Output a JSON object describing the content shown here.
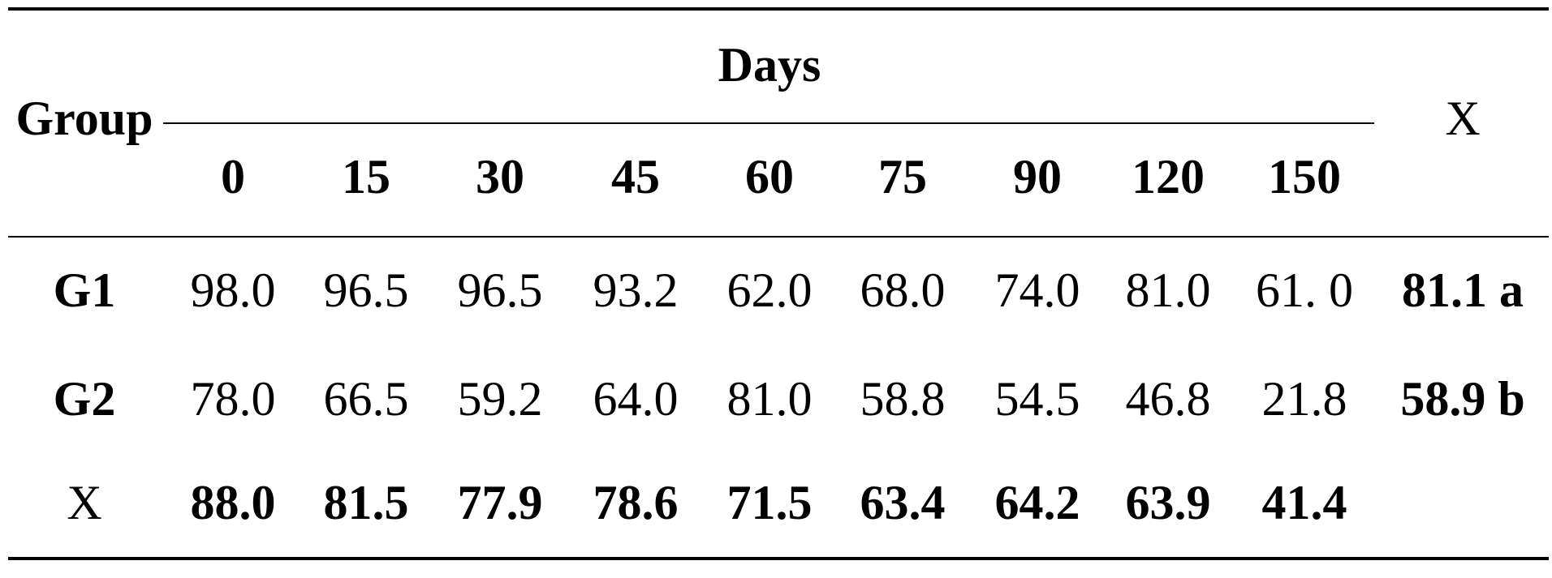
{
  "table": {
    "header": {
      "group": "Group",
      "days": "Days",
      "day_columns": [
        "0",
        "15",
        "30",
        "45",
        "60",
        "75",
        "90",
        "120",
        "150"
      ],
      "mean": "X"
    },
    "rows": [
      {
        "label": "G1",
        "values": [
          "98.0",
          "96.5",
          "96.5",
          "93.2",
          "62.0",
          "68.0",
          "74.0",
          "81.0",
          "61. 0"
        ],
        "mean": "81.1 a"
      },
      {
        "label": "G2",
        "values": [
          "78.0",
          "66.5",
          "59.2",
          "64.0",
          "81.0",
          "58.8",
          "54.5",
          "46.8",
          "21.8"
        ],
        "mean": "58.9 b"
      },
      {
        "label": "X",
        "values": [
          "88.0",
          "81.5",
          "77.9",
          "78.6",
          "71.5",
          "63.4",
          "64.2",
          "63.9",
          "41.4"
        ]
      }
    ]
  }
}
